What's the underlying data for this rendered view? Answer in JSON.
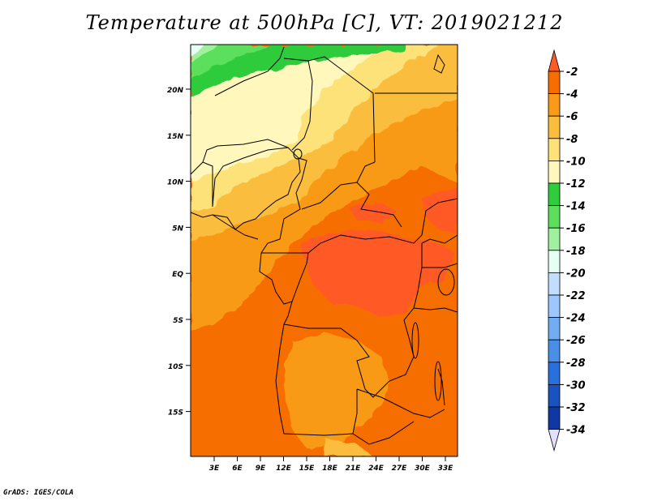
{
  "title": "Temperature at 500hPa [C], VT: 2019021212",
  "credit": "GrADS: IGES/COLA",
  "map": {
    "lat_labels": [
      "20N",
      "15N",
      "10N",
      "5N",
      "EQ",
      "5S",
      "10S",
      "15S"
    ],
    "lon_labels": [
      "3E",
      "6E",
      "9E",
      "12E",
      "15E",
      "18E",
      "21E",
      "24E",
      "27E",
      "30E",
      "33E"
    ]
  },
  "colorbar": {
    "labels": [
      "-2",
      "-4",
      "-6",
      "-8",
      "-10",
      "-12",
      "-14",
      "-16",
      "-18",
      "-20",
      "-22",
      "-24",
      "-26",
      "-28",
      "-30",
      "-32",
      "-34"
    ],
    "colors": [
      "#ff5a28",
      "#f76e00",
      "#f99a18",
      "#fbbd3c",
      "#fde27a",
      "#fff7bc",
      "#2fcc3c",
      "#5cdf5c",
      "#a0f0a0",
      "#e6fff5",
      "#c2deff",
      "#9cc8ff",
      "#72acf2",
      "#4a8ee8",
      "#2870dc",
      "#1a52c0",
      "#0f38a4",
      "#0a1a7a",
      "#e3e0ff"
    ]
  }
}
